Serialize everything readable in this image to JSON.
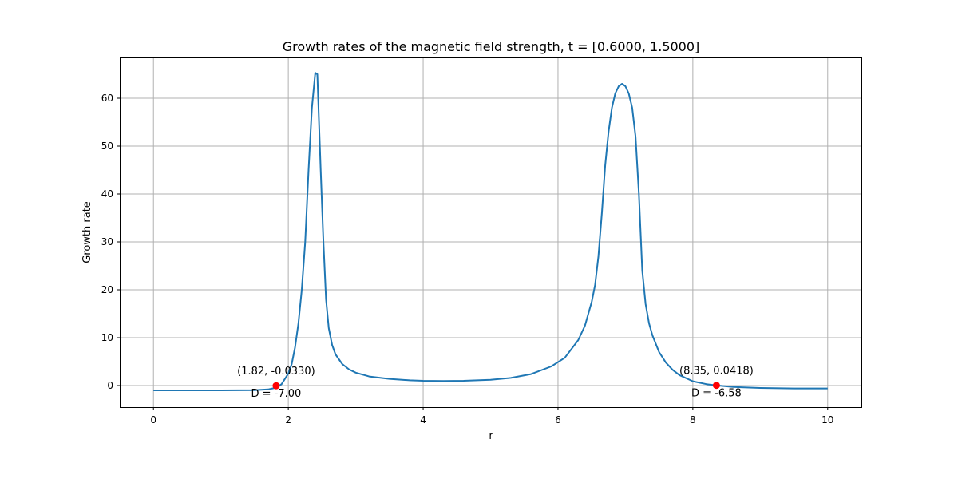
{
  "chart_data": {
    "type": "line",
    "title": "Growth rates of the magnetic field strength, t = [0.6000, 1.5000]",
    "xlabel": "r",
    "ylabel": "Growth rate",
    "xlim": [
      -0.5,
      10.5
    ],
    "ylim": [
      -4.5,
      68.5
    ],
    "grid": true,
    "xticks": [
      0,
      2,
      4,
      6,
      8,
      10
    ],
    "yticks": [
      0,
      10,
      20,
      30,
      40,
      50,
      60
    ],
    "series": [
      {
        "color": "#1f77b4",
        "x": [
          0,
          0.5,
          1.0,
          1.5,
          1.7,
          1.8,
          1.9,
          2.0,
          2.05,
          2.1,
          2.15,
          2.2,
          2.25,
          2.3,
          2.35,
          2.4,
          2.43,
          2.48,
          2.52,
          2.56,
          2.6,
          2.65,
          2.7,
          2.8,
          2.9,
          3.0,
          3.2,
          3.5,
          3.8,
          4.0,
          4.3,
          4.6,
          5.0,
          5.3,
          5.6,
          5.9,
          6.1,
          6.3,
          6.4,
          6.5,
          6.55,
          6.6,
          6.65,
          6.7,
          6.75,
          6.8,
          6.85,
          6.9,
          6.95,
          7.0,
          7.05,
          7.1,
          7.15,
          7.2,
          7.25,
          7.3,
          7.35,
          7.4,
          7.5,
          7.6,
          7.7,
          7.8,
          8.0,
          8.2,
          8.35,
          8.6,
          9.0,
          9.5,
          10.0
        ],
        "y": [
          -1.0,
          -1.0,
          -1.0,
          -0.95,
          -0.8,
          -0.5,
          0.3,
          2.5,
          4.5,
          8.0,
          13.0,
          20.0,
          30.0,
          45.0,
          58.0,
          65.3,
          65.0,
          45.0,
          30.0,
          18.0,
          12.0,
          8.5,
          6.5,
          4.5,
          3.4,
          2.7,
          1.9,
          1.4,
          1.1,
          1.0,
          0.95,
          1.0,
          1.2,
          1.6,
          2.4,
          4.0,
          5.8,
          9.5,
          12.5,
          17.5,
          21.0,
          27.0,
          36.0,
          46.0,
          53.0,
          58.0,
          61.0,
          62.5,
          63.0,
          62.5,
          61.0,
          58.0,
          52.0,
          40.0,
          24.0,
          17.0,
          13.0,
          10.5,
          7.0,
          4.8,
          3.3,
          2.2,
          0.9,
          0.3,
          0.04,
          -0.3,
          -0.5,
          -0.6,
          -0.6
        ]
      }
    ],
    "markers": [
      {
        "x": 1.82,
        "y": -0.033,
        "color": "#ff0000",
        "label": "(1.82, -0.0330)",
        "sublabel": "D = -7.00"
      },
      {
        "x": 8.35,
        "y": 0.0418,
        "color": "#ff0000",
        "label": "(8.35, 0.0418)",
        "sublabel": "D = -6.58"
      }
    ]
  }
}
